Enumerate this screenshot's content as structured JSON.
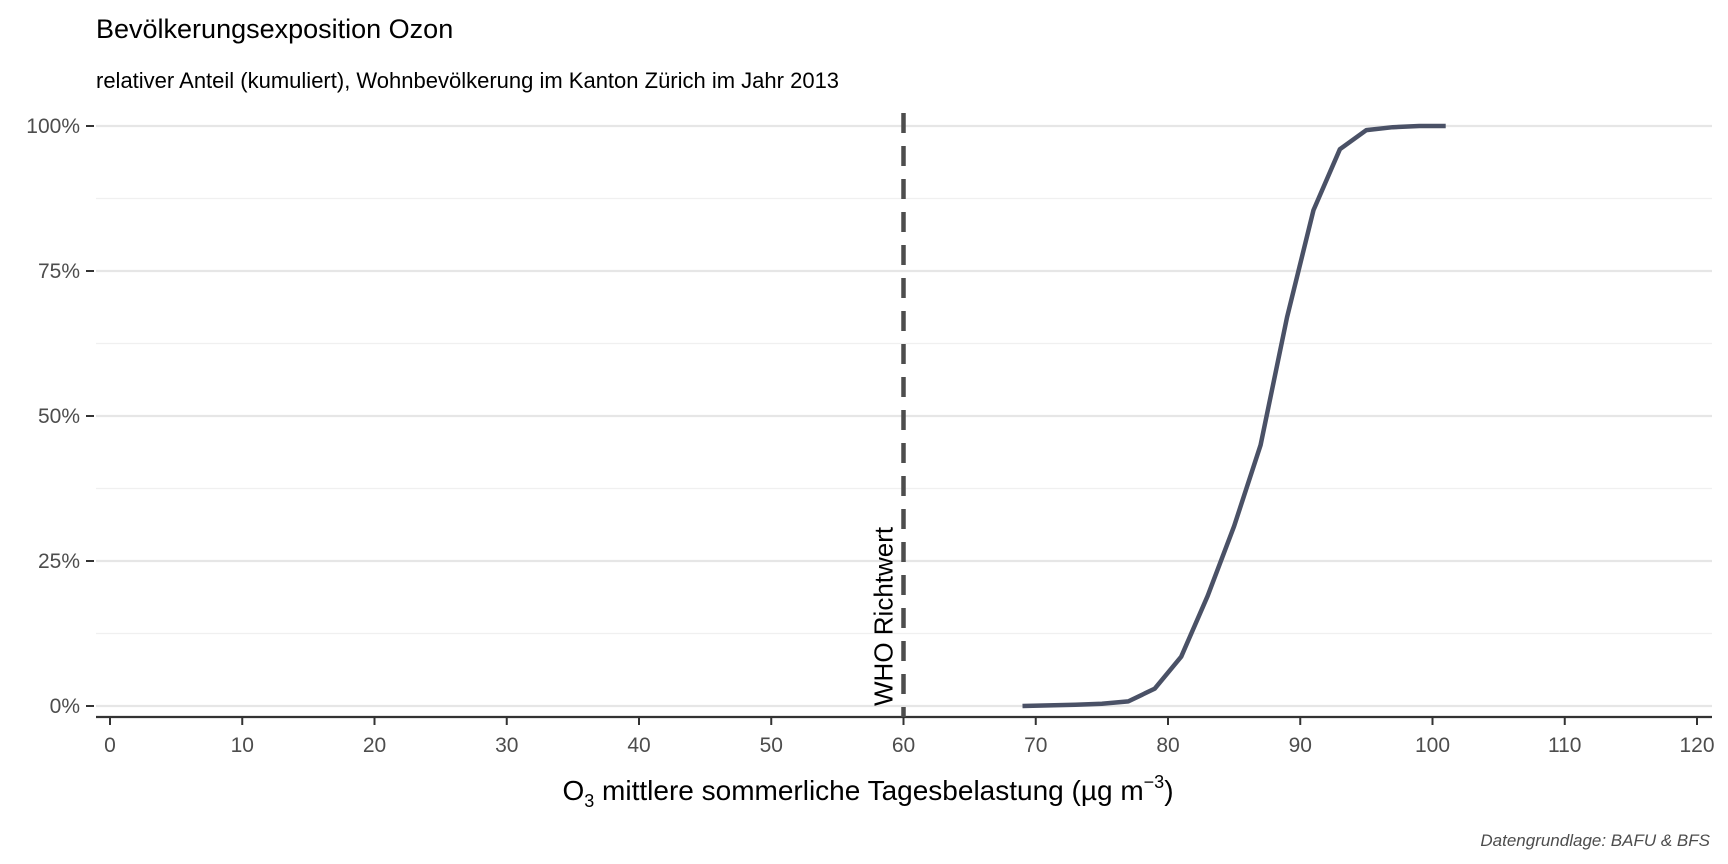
{
  "chart_data": {
    "type": "line",
    "title": "Bevölkerungsexposition Ozon",
    "subtitle": "relativer Anteil (kumuliert), Wohnbevölkerung im Kanton Zürich im Jahr 2013",
    "xlabel": {
      "prefix": "O",
      "subscript": "3",
      "main": " mittlere sommerliche Tagesbelastung (µg m",
      "superscript": "−3",
      "suffix": ")"
    },
    "ylabel": "",
    "caption": "Datengrundlage: BAFU & BFS",
    "xlim": [
      0,
      120
    ],
    "ylim": [
      0,
      1
    ],
    "x_ticks": [
      0,
      10,
      20,
      30,
      40,
      50,
      60,
      70,
      80,
      90,
      100,
      110,
      120
    ],
    "x_tick_labels": [
      "0",
      "10",
      "20",
      "30",
      "40",
      "50",
      "60",
      "70",
      "80",
      "90",
      "100",
      "110",
      "120"
    ],
    "y_ticks": [
      0,
      0.25,
      0.5,
      0.75,
      1.0
    ],
    "y_tick_labels": [
      "0%",
      "25%",
      "50%",
      "75%",
      "100%"
    ],
    "grid": true,
    "series": [
      {
        "color": "#4a5166",
        "x": [
          69,
          71,
          73,
          75,
          77,
          79,
          81,
          83,
          85,
          87,
          89,
          91,
          93,
          95,
          97,
          99,
          101
        ],
        "y": [
          0.0,
          0.001,
          0.002,
          0.004,
          0.008,
          0.03,
          0.085,
          0.19,
          0.31,
          0.45,
          0.67,
          0.855,
          0.96,
          0.993,
          0.998,
          1.0,
          1.0
        ]
      }
    ],
    "reference_line": {
      "x": 60,
      "label": "WHO Richtwert",
      "color": "#4d4d4d",
      "style": "dashed"
    }
  }
}
